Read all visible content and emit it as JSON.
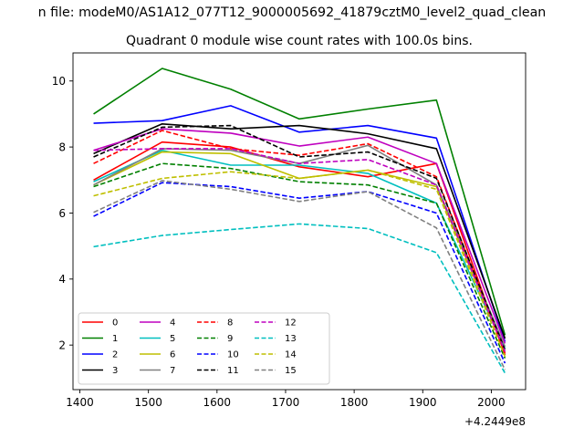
{
  "figure": {
    "suptitle": "n file: modeM0/AS1A12_077T12_9000005692_41879cztM0_level2_quad_clean",
    "background": "#ffffff"
  },
  "chart_data": {
    "type": "line",
    "title": "Quadrant 0 module wise count rates with 100.0s bins.",
    "xlabel": "",
    "ylabel": "",
    "x_offset_text": "+4.2449e8",
    "x": [
      1420,
      1520,
      1620,
      1720,
      1820,
      1920,
      2020
    ],
    "xlim": [
      1390,
      2050
    ],
    "ylim": [
      0.65,
      10.85
    ],
    "xticks": [
      1400,
      1500,
      1600,
      1700,
      1800,
      1900,
      2000
    ],
    "yticks": [
      2,
      4,
      6,
      8,
      10
    ],
    "grid": false,
    "legend_location": "lower left",
    "legend_columns": 4,
    "series": [
      {
        "name": "0",
        "color": "#ff0000",
        "style": "solid",
        "values": [
          7.0,
          8.15,
          8.0,
          7.4,
          7.1,
          7.5,
          1.7
        ]
      },
      {
        "name": "1",
        "color": "#008000",
        "style": "solid",
        "values": [
          9.0,
          10.38,
          9.75,
          8.85,
          9.15,
          9.42,
          2.3
        ]
      },
      {
        "name": "2",
        "color": "#0000ff",
        "style": "solid",
        "values": [
          8.72,
          8.8,
          9.25,
          8.45,
          8.65,
          8.27,
          2.1
        ]
      },
      {
        "name": "3",
        "color": "#000000",
        "style": "solid",
        "values": [
          7.8,
          8.7,
          8.55,
          8.65,
          8.4,
          7.95,
          2.2
        ]
      },
      {
        "name": "4",
        "color": "#bf00bf",
        "style": "solid",
        "values": [
          7.9,
          8.55,
          8.42,
          8.03,
          8.3,
          7.5,
          2.05
        ]
      },
      {
        "name": "5",
        "color": "#00bfbf",
        "style": "solid",
        "values": [
          6.95,
          7.9,
          7.45,
          7.45,
          7.2,
          6.3,
          1.9
        ]
      },
      {
        "name": "6",
        "color": "#bfbf00",
        "style": "solid",
        "values": [
          6.85,
          7.85,
          7.8,
          7.05,
          7.3,
          6.8,
          1.8
        ]
      },
      {
        "name": "7",
        "color": "#808080",
        "style": "solid",
        "values": [
          6.85,
          7.95,
          7.9,
          7.5,
          8.05,
          6.85,
          1.95
        ]
      },
      {
        "name": "8",
        "color": "#ff0000",
        "style": "dashed",
        "values": [
          7.5,
          8.5,
          7.95,
          7.75,
          8.1,
          7.1,
          1.75
        ]
      },
      {
        "name": "9",
        "color": "#008000",
        "style": "dashed",
        "values": [
          6.8,
          7.5,
          7.35,
          6.95,
          6.85,
          6.3,
          1.6
        ]
      },
      {
        "name": "10",
        "color": "#0000ff",
        "style": "dashed",
        "values": [
          5.9,
          6.92,
          6.8,
          6.45,
          6.65,
          6.0,
          1.45
        ]
      },
      {
        "name": "11",
        "color": "#000000",
        "style": "dashed",
        "values": [
          7.7,
          8.6,
          8.65,
          7.7,
          7.85,
          7.05,
          1.85
        ]
      },
      {
        "name": "12",
        "color": "#bf00bf",
        "style": "dashed",
        "values": [
          7.9,
          7.95,
          7.95,
          7.5,
          7.62,
          6.85,
          1.8
        ]
      },
      {
        "name": "13",
        "color": "#00bfbf",
        "style": "dashed",
        "values": [
          4.98,
          5.32,
          5.5,
          5.67,
          5.53,
          4.8,
          1.15
        ]
      },
      {
        "name": "14",
        "color": "#bfbf00",
        "style": "dashed",
        "values": [
          6.52,
          7.05,
          7.25,
          7.05,
          7.3,
          6.72,
          1.65
        ]
      },
      {
        "name": "15",
        "color": "#808080",
        "style": "dashed",
        "values": [
          6.02,
          6.98,
          6.72,
          6.35,
          6.65,
          5.55,
          1.25
        ]
      }
    ]
  }
}
